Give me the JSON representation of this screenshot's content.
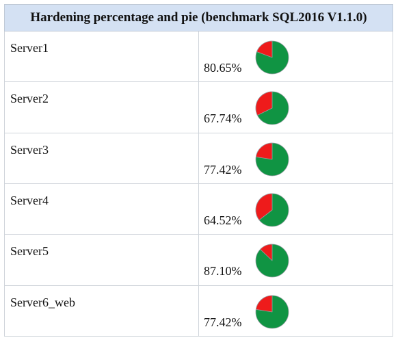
{
  "table": {
    "title": "Hardening percentage and pie (benchmark SQL2016 V1.1.0)"
  },
  "chart_data": {
    "type": "pie",
    "title": "Hardening percentage and pie (benchmark SQL2016 V1.1.0)",
    "colors": {
      "hardened": "#109443",
      "not_hardened": "#ee1b1b",
      "slice_border": "#9aa0a6"
    },
    "rows": [
      {
        "server": "Server1",
        "percentage": 80.65,
        "label": "80.65%"
      },
      {
        "server": "Server2",
        "percentage": 67.74,
        "label": "67.74%"
      },
      {
        "server": "Server3",
        "percentage": 77.42,
        "label": "77.42%"
      },
      {
        "server": "Server4",
        "percentage": 64.52,
        "label": "64.52%"
      },
      {
        "server": "Server5",
        "percentage": 87.1,
        "label": "87.10%"
      },
      {
        "server": "Server6_web",
        "percentage": 77.42,
        "label": "77.42%"
      }
    ]
  }
}
